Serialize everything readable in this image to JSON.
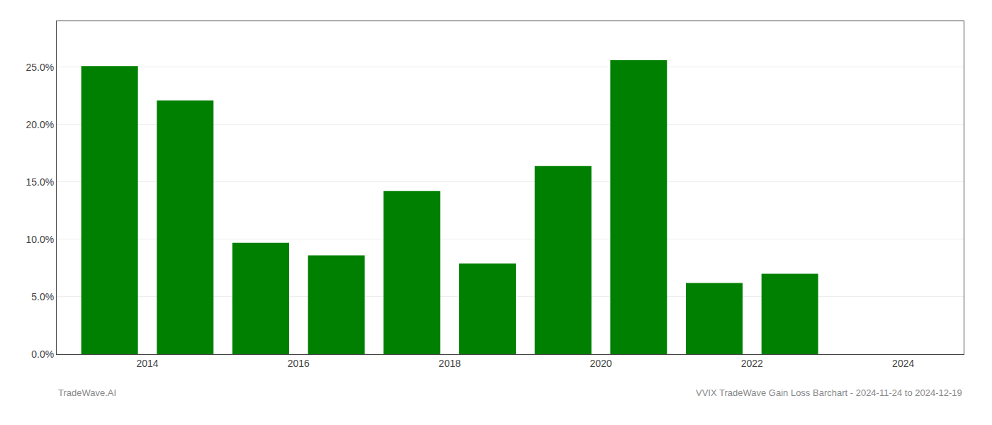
{
  "chart_data": {
    "type": "bar",
    "x": [
      2013.5,
      2014.5,
      2015.5,
      2016.5,
      2017.5,
      2018.5,
      2019.5,
      2020.5,
      2021.5,
      2022.5,
      2023.5
    ],
    "values": [
      0.251,
      0.221,
      0.097,
      0.086,
      0.142,
      0.079,
      0.164,
      0.256,
      0.062,
      0.07,
      0.0
    ],
    "color": "#008000",
    "xlim": [
      2012.8,
      2024.8
    ],
    "xticks": [
      2014,
      2016,
      2018,
      2020,
      2022,
      2024
    ],
    "ylim": [
      0,
      0.29
    ],
    "yticks": [
      {
        "value": 0.0,
        "label": "0.0%"
      },
      {
        "value": 0.05,
        "label": "5.0%"
      },
      {
        "value": 0.1,
        "label": "10.0%"
      },
      {
        "value": 0.15,
        "label": "15.0%"
      },
      {
        "value": 0.2,
        "label": "20.0%"
      },
      {
        "value": 0.25,
        "label": "25.0%"
      }
    ],
    "grid": true,
    "annotations": [
      "TradeWave.AI",
      "VVIX TradeWave Gain Loss Barchart - 2024-11-24 to 2024-12-19"
    ]
  }
}
